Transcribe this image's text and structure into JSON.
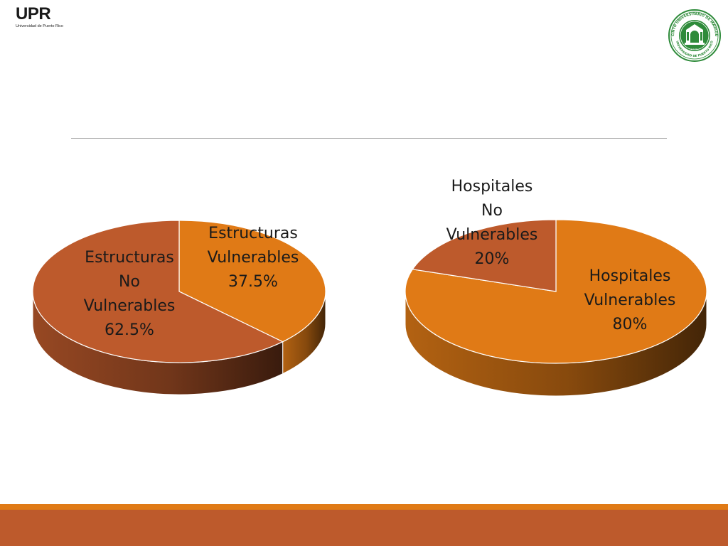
{
  "header": {
    "logo_text": "UPR",
    "logo_subtext": "Universidad de Puerto Rico",
    "seal_top_text": "RECINTO UNIVERSITARIO DE MAYAGÜEZ",
    "seal_bottom_text": "UNIVERSIDAD DE PUERTO RICO",
    "seal_center_text": "R.U.M."
  },
  "colors": {
    "rust": "#bd5a2c",
    "orange": "#e07a16",
    "footer_orange": "#e07a16",
    "footer_brown": "#bd5a2c",
    "seal_green": "#2e8b3a"
  },
  "chart_data": [
    {
      "type": "pie",
      "style": "3d",
      "slices": [
        {
          "label": "Estructuras Vulnerables",
          "value": 37.5,
          "color": "#e07a16",
          "label_lines": [
            "Estructuras",
            "Vulnerables",
            "37.5%"
          ]
        },
        {
          "label": "Estructuras No Vulnerables",
          "value": 62.5,
          "color": "#bd5a2c",
          "label_lines": [
            "Estructuras",
            "No",
            "Vulnerables",
            "62.5%"
          ]
        }
      ]
    },
    {
      "type": "pie",
      "style": "3d",
      "slices": [
        {
          "label": "Hospitales Vulnerables",
          "value": 80,
          "color": "#e07a16",
          "label_lines": [
            "Hospitales",
            "Vulnerables",
            "80%"
          ]
        },
        {
          "label": "Hospitales No Vulnerables",
          "value": 20,
          "color": "#bd5a2c",
          "label_lines": [
            "Hospitales",
            "No",
            "Vulnerables",
            "20%"
          ]
        }
      ]
    }
  ]
}
